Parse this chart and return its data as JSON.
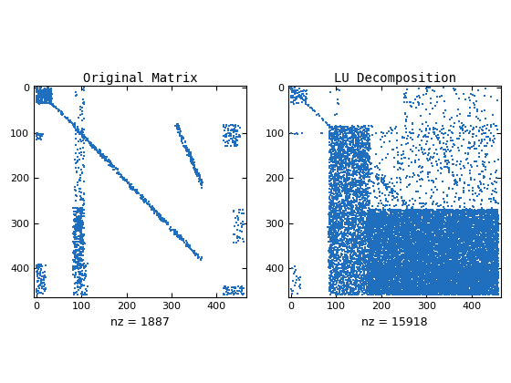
{
  "title1": "Original Matrix",
  "title2": "LU Decomposition",
  "xlabel1": "nz = 1887",
  "xlabel2": "nz = 15918",
  "n": 460,
  "marker_color": "#1f6fbe",
  "marker_size": 2.0,
  "xlim": [
    -5,
    465
  ],
  "ylim": [
    465,
    -5
  ],
  "xticks": [
    0,
    100,
    200,
    300,
    400
  ],
  "yticks": [
    0,
    100,
    200,
    300,
    400
  ],
  "fig_width": 5.6,
  "fig_height": 4.2,
  "dpi": 100
}
